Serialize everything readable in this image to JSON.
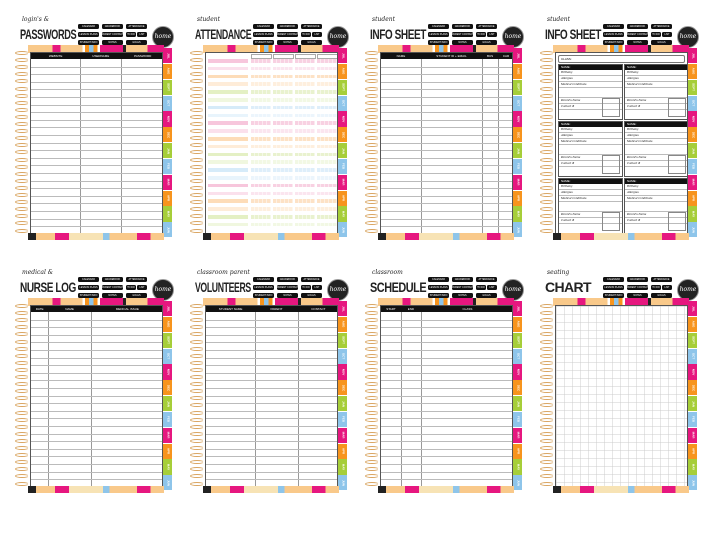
{
  "nav_buttons": [
    [
      "CALENDAR",
      "GRADEBOOK",
      "ATTENDANCE"
    ],
    [
      "LESSON PLANS",
      "PARENT CONTACT",
      "TO DO",
      "LIST"
    ],
    [
      "STUDENT INFO",
      "NOTES",
      "GOALS"
    ]
  ],
  "home_label": "home",
  "month_tabs": [
    "JUL",
    "AUG",
    "SEPT",
    "OCT",
    "NOV",
    "DEC",
    "JAN",
    "FEB",
    "MAR",
    "APR",
    "MAY",
    "JUN"
  ],
  "tab_colors": [
    "#e6177f",
    "#f7941d",
    "#a6ce39",
    "#8ec5ea"
  ],
  "pages": [
    {
      "script": "login's &",
      "title": "PASSWORDS",
      "type": "table",
      "columns": [
        "WEBSITE",
        "USERNAME",
        "PASSWORD"
      ],
      "widths": [
        0.37,
        0.31,
        0.32
      ]
    },
    {
      "script": "student",
      "title": "ATTENDANCE",
      "type": "attendance"
    },
    {
      "script": "student",
      "title": "INFO SHEET",
      "type": "table",
      "columns": [
        "NAME",
        "STUDENT ID + EMAIL",
        "BUS",
        "CAR"
      ],
      "widths": [
        0.3,
        0.46,
        0.12,
        0.12
      ]
    },
    {
      "script": "student",
      "title": "INFO SHEET",
      "type": "cards",
      "class_label": "CLASS:",
      "card_fields": [
        "NAME:",
        "Birthday",
        "Allergies",
        "Medical Conditions",
        "",
        "Parent's Name",
        "Contact #"
      ]
    },
    {
      "script": "medical &",
      "title": "NURSE LOG",
      "type": "table",
      "columns": [
        "DATE",
        "NAME",
        "MEDICAL ISSUE"
      ],
      "widths": [
        0.13,
        0.32,
        0.55
      ]
    },
    {
      "script": "classroom parent",
      "title": "VOLUNTEERS",
      "type": "table",
      "columns": [
        "STUDENT NAME",
        "PARENT",
        "CONTACT"
      ],
      "widths": [
        0.37,
        0.32,
        0.31
      ]
    },
    {
      "script": "classroom",
      "title": "SCHEDULE",
      "type": "table",
      "columns": [
        "START",
        "END",
        "CLASS"
      ],
      "widths": [
        0.15,
        0.15,
        0.7
      ]
    },
    {
      "script": "seating",
      "title": "CHART",
      "type": "grid"
    }
  ]
}
